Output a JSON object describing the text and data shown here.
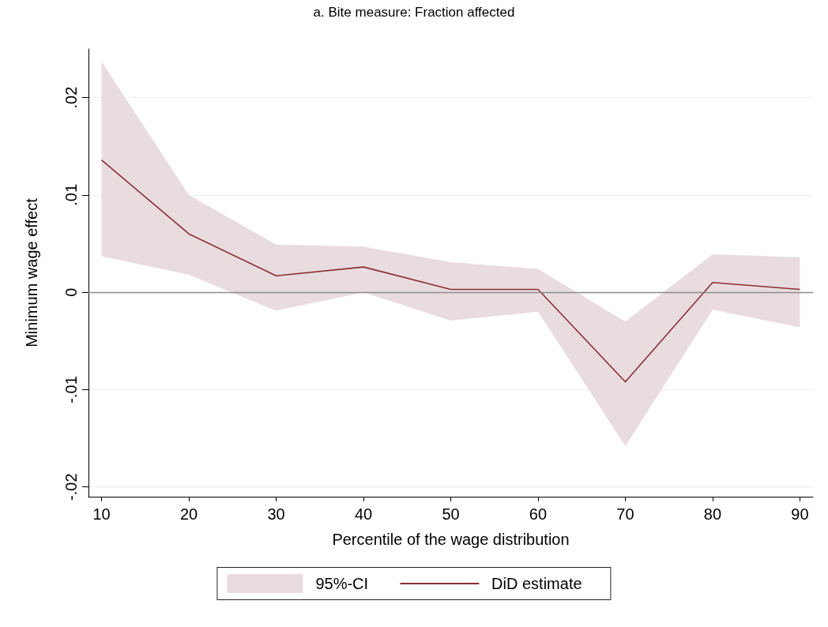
{
  "chart_data": {
    "type": "line",
    "title": "a. Bite measure: Fraction affected",
    "xlabel": "Percentile of the wage distribution",
    "ylabel": "Minimum wage effect",
    "annotations": [
      "95%-CI"
    ],
    "x": [
      10,
      20,
      30,
      40,
      50,
      60,
      70,
      80,
      90
    ],
    "series": [
      {
        "name": "DiD estimate",
        "color": "#8b2e35",
        "values": [
          0.0136,
          0.006,
          0.0017,
          0.0026,
          0.0003,
          0.0003,
          -0.0092,
          0.001,
          0.0003
        ],
        "lower": [
          0.0037,
          0.0018,
          -0.0019,
          0.0,
          -0.0029,
          -0.002,
          -0.0158,
          -0.0018,
          -0.0036
        ],
        "upper": [
          0.0237,
          0.01,
          0.0049,
          0.0047,
          0.0031,
          0.0024,
          -0.003,
          0.0039,
          0.0036
        ]
      }
    ],
    "xlim": [
      8.5,
      91.5
    ],
    "xticks": [
      10,
      20,
      30,
      40,
      50,
      60,
      70,
      80,
      90
    ],
    "ylim": [
      -0.021,
      0.025
    ],
    "yticks": [
      {
        "value": -0.02,
        "label": "-.02"
      },
      {
        "value": -0.01,
        "label": "-.01"
      },
      0,
      {
        "value": 0.01,
        "label": ".01"
      },
      {
        "value": 0.02,
        "label": ".02"
      }
    ],
    "ref_lines": [
      {
        "axis": "y",
        "value": 0,
        "label": null,
        "color": "#8c8c8c"
      }
    ],
    "grid": "y",
    "legend": "bottom",
    "marker": "none",
    "line_style": "solid"
  }
}
